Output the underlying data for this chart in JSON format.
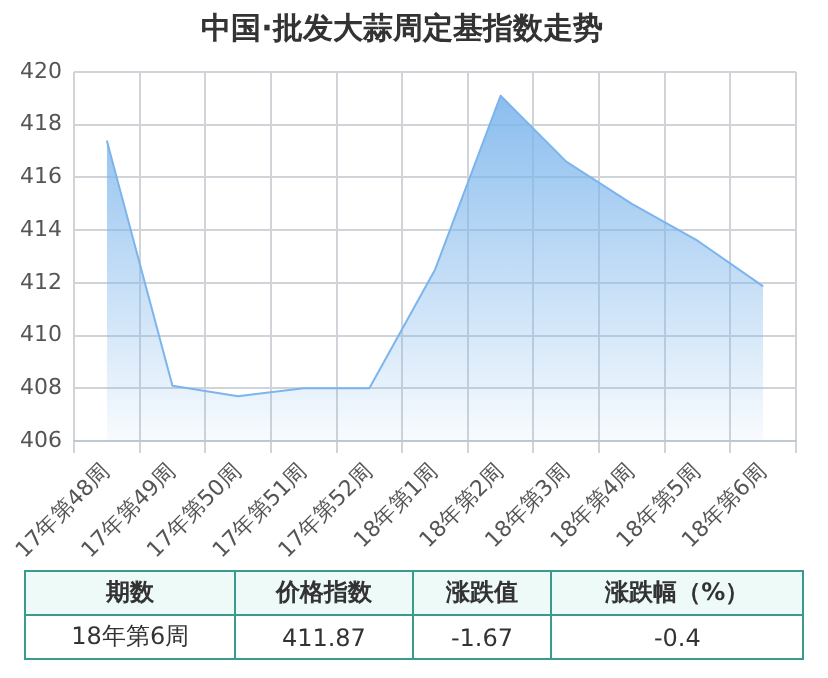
{
  "chart_data": {
    "type": "area",
    "title": "中国·批发大蒜周定基指数走势",
    "categories": [
      "17年第48周",
      "17年第49周",
      "17年第50周",
      "17年第51周",
      "17年第52周",
      "18年第1周",
      "18年第2周",
      "18年第3周",
      "18年第4周",
      "18年第5周",
      "18年第6周"
    ],
    "series": [
      {
        "color": "#7cb5ec",
        "values": [
          417.4,
          408.1,
          407.7,
          408.0,
          408.0,
          412.5,
          419.1,
          416.6,
          415.0,
          413.6,
          411.87
        ]
      }
    ],
    "ylim": [
      406,
      420
    ],
    "yticks": [
      406,
      408,
      410,
      412,
      414,
      416,
      418,
      420
    ],
    "grid": true,
    "legend": false,
    "annotations": [
      "期数",
      "价格指数",
      "涨跌值",
      "涨跌幅（%）",
      "18年第6周",
      "411.87",
      "-1.67",
      "-0.4"
    ]
  }
}
